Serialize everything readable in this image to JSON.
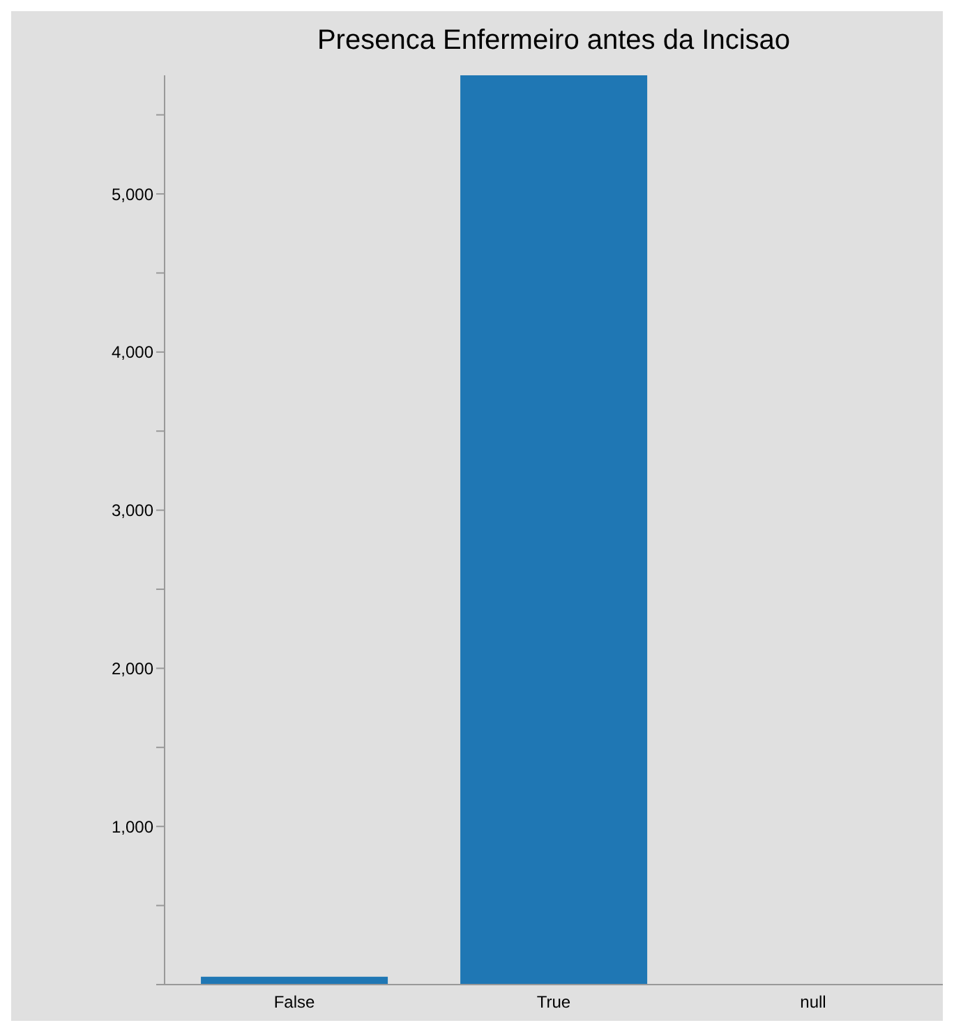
{
  "chart_data": {
    "type": "bar",
    "title": "Presenca Enfermeiro antes da Incisao",
    "categories": [
      "False",
      "True",
      "null"
    ],
    "values": [
      50,
      5750,
      0
    ],
    "color": "#1f77b4",
    "ylim": [
      0,
      5750
    ],
    "yticks": [
      {
        "value": 0,
        "label": null
      },
      {
        "value": 500,
        "label": null
      },
      {
        "value": 1000,
        "label": "1,000"
      },
      {
        "value": 1500,
        "label": null
      },
      {
        "value": 2000,
        "label": "2,000"
      },
      {
        "value": 2500,
        "label": null
      },
      {
        "value": 3000,
        "label": "3,000"
      },
      {
        "value": 3500,
        "label": null
      },
      {
        "value": 4000,
        "label": "4,000"
      },
      {
        "value": 4500,
        "label": null
      },
      {
        "value": 5000,
        "label": "5,000"
      },
      {
        "value": 5500,
        "label": null
      }
    ],
    "grid": false,
    "legend": false
  }
}
